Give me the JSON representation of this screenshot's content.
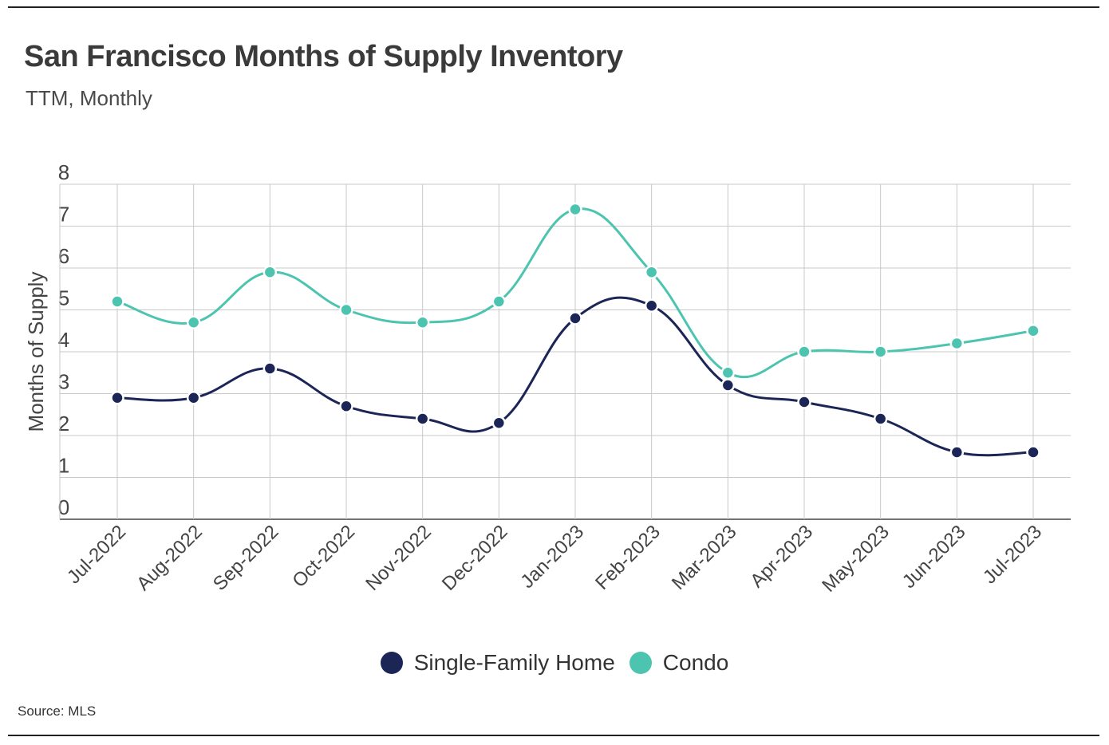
{
  "header": {
    "title": "San Francisco Months of Supply Inventory",
    "subtitle": "TTM, Monthly"
  },
  "footer": {
    "source": "Source:  MLS"
  },
  "colors": {
    "single_family": "#1c2656",
    "condo": "#4cc4b0",
    "grid": "#c8c8c8",
    "axis": "#444444"
  },
  "chart_data": {
    "type": "line",
    "title": "San Francisco Months of Supply Inventory",
    "subtitle": "TTM, Monthly",
    "xlabel": "",
    "ylabel": "Months of Supply",
    "ylim": [
      0,
      8
    ],
    "yticks": [
      0,
      1,
      2,
      3,
      4,
      5,
      6,
      7,
      8
    ],
    "grid": true,
    "legend_position": "bottom-center",
    "categories": [
      "Jul-2022",
      "Aug-2022",
      "Sep-2022",
      "Oct-2022",
      "Nov-2022",
      "Dec-2022",
      "Jan-2023",
      "Feb-2023",
      "Mar-2023",
      "Apr-2023",
      "May-2023",
      "Jun-2023",
      "Jul-2023"
    ],
    "series": [
      {
        "name": "Single-Family Home",
        "color": "#1c2656",
        "values": [
          2.9,
          2.9,
          3.6,
          2.7,
          2.4,
          2.3,
          4.8,
          5.1,
          3.2,
          2.8,
          2.4,
          1.6,
          1.6
        ]
      },
      {
        "name": "Condo",
        "color": "#4cc4b0",
        "values": [
          5.2,
          4.7,
          5.9,
          5.0,
          4.7,
          5.2,
          7.4,
          5.9,
          3.5,
          4.0,
          4.0,
          4.2,
          4.5
        ]
      }
    ]
  }
}
